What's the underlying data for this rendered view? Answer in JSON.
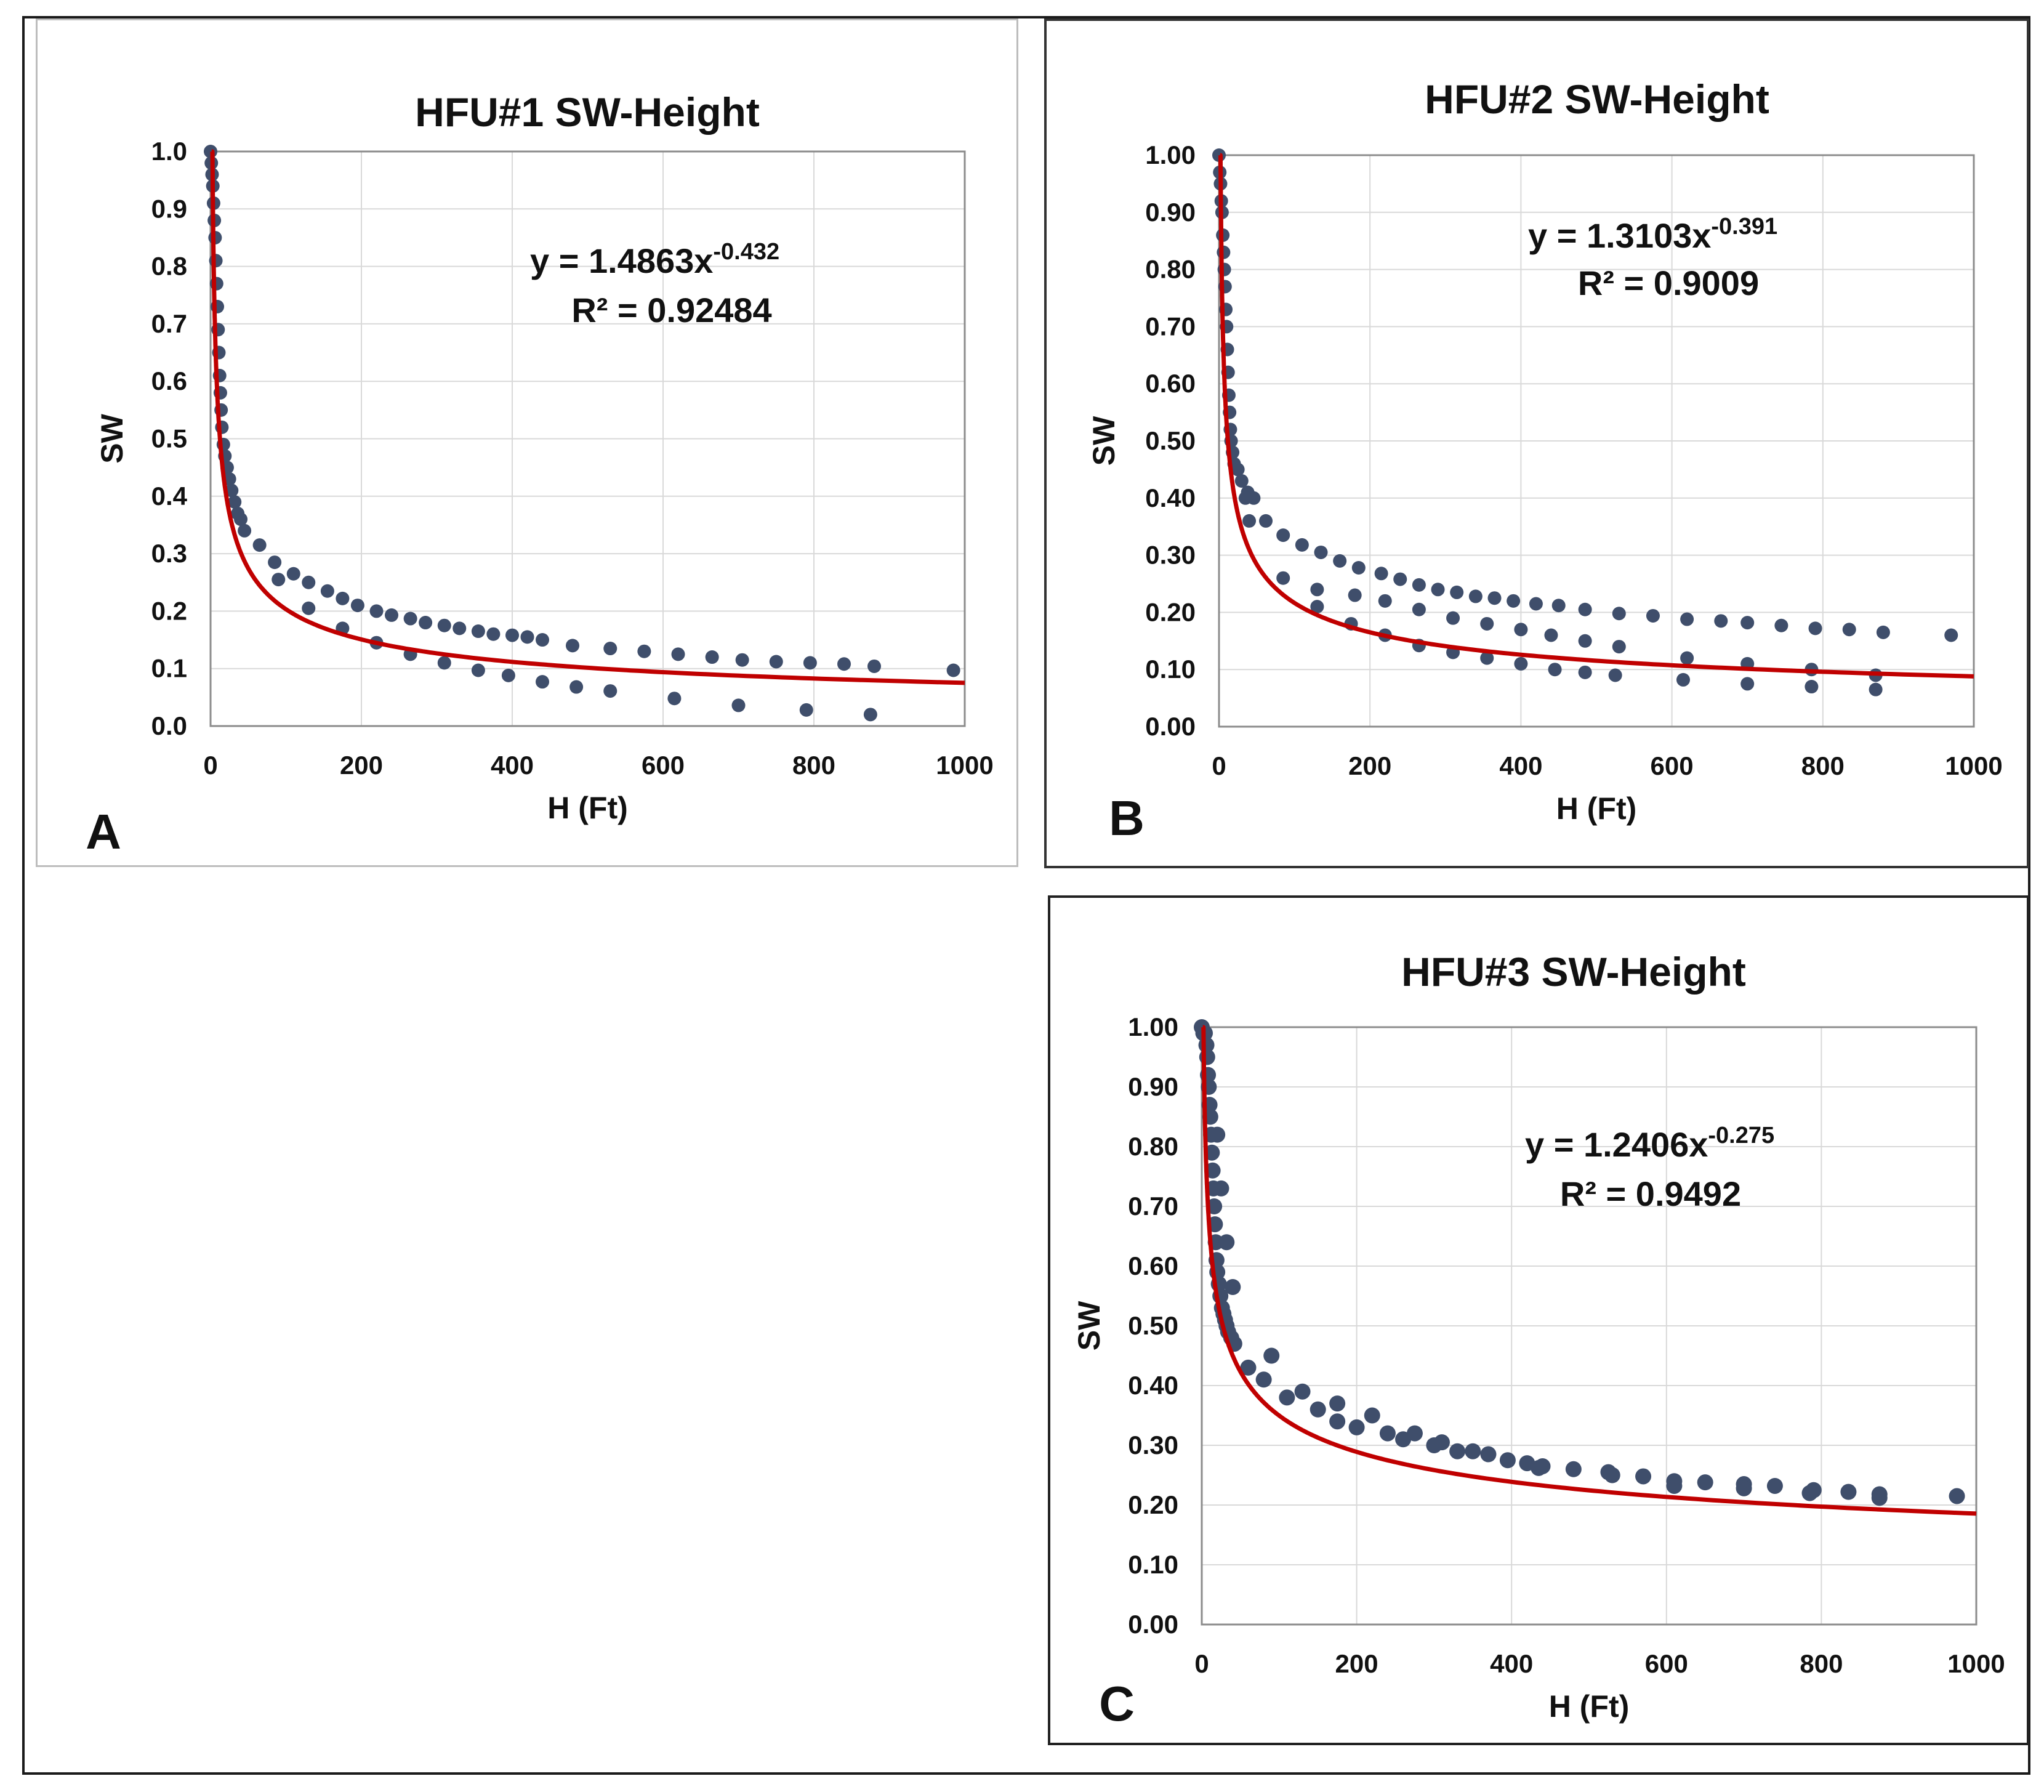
{
  "chart_data": [
    {
      "type": "scatter",
      "panel_label": "A",
      "title": "HFU#1 SW-Height",
      "xlabel": "H (Ft)",
      "ylabel": "SW",
      "xlim": [
        0,
        1000
      ],
      "ylim": [
        0,
        1.0
      ],
      "x_ticks": [
        "0",
        "200",
        "400",
        "600",
        "800",
        "1000"
      ],
      "y_ticks": [
        "0.0",
        "0.1",
        "0.2",
        "0.3",
        "0.4",
        "0.5",
        "0.6",
        "0.7",
        "0.8",
        "0.9",
        "1.0"
      ],
      "equation_prefix": "y = 1.4863x",
      "equation_exponent": "-0.432",
      "r2_text": "R² = 0.92484",
      "trendline": {
        "a": 1.4863,
        "b": -0.432,
        "x_min": 1.5
      },
      "points": [
        [
          0,
          1.0
        ],
        [
          1,
          0.98
        ],
        [
          2,
          0.96
        ],
        [
          3,
          0.94
        ],
        [
          4,
          0.91
        ],
        [
          5,
          0.88
        ],
        [
          6,
          0.85
        ],
        [
          7,
          0.81
        ],
        [
          8,
          0.77
        ],
        [
          9,
          0.73
        ],
        [
          10,
          0.69
        ],
        [
          11,
          0.65
        ],
        [
          12,
          0.61
        ],
        [
          13,
          0.58
        ],
        [
          14,
          0.55
        ],
        [
          15,
          0.52
        ],
        [
          17,
          0.49
        ],
        [
          19,
          0.47
        ],
        [
          22,
          0.45
        ],
        [
          25,
          0.43
        ],
        [
          28,
          0.41
        ],
        [
          32,
          0.39
        ],
        [
          36,
          0.37
        ],
        [
          40,
          0.36
        ],
        [
          45,
          0.34
        ],
        [
          65,
          0.315
        ],
        [
          85,
          0.285
        ],
        [
          110,
          0.265
        ],
        [
          130,
          0.25
        ],
        [
          155,
          0.235
        ],
        [
          175,
          0.222
        ],
        [
          195,
          0.21
        ],
        [
          220,
          0.2
        ],
        [
          240,
          0.193
        ],
        [
          265,
          0.187
        ],
        [
          285,
          0.18
        ],
        [
          310,
          0.175
        ],
        [
          330,
          0.17
        ],
        [
          355,
          0.165
        ],
        [
          375,
          0.16
        ],
        [
          400,
          0.158
        ],
        [
          420,
          0.155
        ],
        [
          440,
          0.15
        ],
        [
          480,
          0.14
        ],
        [
          530,
          0.135
        ],
        [
          575,
          0.13
        ],
        [
          620,
          0.125
        ],
        [
          665,
          0.12
        ],
        [
          705,
          0.115
        ],
        [
          750,
          0.112
        ],
        [
          795,
          0.11
        ],
        [
          840,
          0.108
        ],
        [
          880,
          0.104
        ],
        [
          985,
          0.097
        ],
        [
          90,
          0.255
        ],
        [
          130,
          0.205
        ],
        [
          175,
          0.17
        ],
        [
          220,
          0.145
        ],
        [
          265,
          0.125
        ],
        [
          310,
          0.11
        ],
        [
          355,
          0.097
        ],
        [
          395,
          0.088
        ],
        [
          440,
          0.077
        ],
        [
          485,
          0.068
        ],
        [
          530,
          0.061
        ],
        [
          615,
          0.048
        ],
        [
          700,
          0.036
        ],
        [
          790,
          0.028
        ],
        [
          875,
          0.02
        ]
      ]
    },
    {
      "type": "scatter",
      "panel_label": "B",
      "title": "HFU#2 SW-Height",
      "xlabel": "H (Ft)",
      "ylabel": "SW",
      "xlim": [
        0,
        1000
      ],
      "ylim": [
        0,
        1.0
      ],
      "x_ticks": [
        "0",
        "200",
        "400",
        "600",
        "800",
        "1000"
      ],
      "y_ticks": [
        "0.00",
        "0.10",
        "0.20",
        "0.30",
        "0.40",
        "0.50",
        "0.60",
        "0.70",
        "0.80",
        "0.90",
        "1.00"
      ],
      "equation_prefix": "y = 1.3103x",
      "equation_exponent": "-0.391",
      "r2_text": "R² = 0.9009",
      "trendline": {
        "a": 1.3103,
        "b": -0.391,
        "x_min": 1.5
      },
      "points": [
        [
          0,
          1.0
        ],
        [
          1,
          0.97
        ],
        [
          2,
          0.95
        ],
        [
          3,
          0.92
        ],
        [
          4,
          0.9
        ],
        [
          5,
          0.86
        ],
        [
          6,
          0.83
        ],
        [
          7,
          0.8
        ],
        [
          8,
          0.77
        ],
        [
          9,
          0.73
        ],
        [
          10,
          0.7
        ],
        [
          11,
          0.66
        ],
        [
          12,
          0.62
        ],
        [
          13,
          0.58
        ],
        [
          14,
          0.55
        ],
        [
          15,
          0.52
        ],
        [
          16,
          0.5
        ],
        [
          18,
          0.48
        ],
        [
          20,
          0.46
        ],
        [
          25,
          0.45
        ],
        [
          30,
          0.43
        ],
        [
          38,
          0.41
        ],
        [
          46,
          0.4
        ],
        [
          35,
          0.4
        ],
        [
          62,
          0.36
        ],
        [
          85,
          0.335
        ],
        [
          110,
          0.318
        ],
        [
          135,
          0.305
        ],
        [
          160,
          0.29
        ],
        [
          185,
          0.278
        ],
        [
          215,
          0.268
        ],
        [
          240,
          0.258
        ],
        [
          265,
          0.248
        ],
        [
          290,
          0.24
        ],
        [
          315,
          0.235
        ],
        [
          340,
          0.228
        ],
        [
          365,
          0.225
        ],
        [
          390,
          0.22
        ],
        [
          420,
          0.215
        ],
        [
          450,
          0.212
        ],
        [
          485,
          0.205
        ],
        [
          530,
          0.198
        ],
        [
          575,
          0.194
        ],
        [
          620,
          0.188
        ],
        [
          665,
          0.185
        ],
        [
          700,
          0.182
        ],
        [
          745,
          0.177
        ],
        [
          790,
          0.172
        ],
        [
          835,
          0.17
        ],
        [
          880,
          0.165
        ],
        [
          970,
          0.16
        ],
        [
          40,
          0.36
        ],
        [
          85,
          0.26
        ],
        [
          130,
          0.21
        ],
        [
          175,
          0.18
        ],
        [
          220,
          0.16
        ],
        [
          265,
          0.142
        ],
        [
          310,
          0.13
        ],
        [
          355,
          0.12
        ],
        [
          400,
          0.11
        ],
        [
          445,
          0.1
        ],
        [
          485,
          0.095
        ],
        [
          525,
          0.09
        ],
        [
          615,
          0.082
        ],
        [
          700,
          0.075
        ],
        [
          785,
          0.07
        ],
        [
          870,
          0.065
        ],
        [
          130,
          0.24
        ],
        [
          180,
          0.23
        ],
        [
          220,
          0.22
        ],
        [
          265,
          0.205
        ],
        [
          310,
          0.19
        ],
        [
          355,
          0.18
        ],
        [
          400,
          0.17
        ],
        [
          440,
          0.16
        ],
        [
          485,
          0.15
        ],
        [
          530,
          0.14
        ],
        [
          620,
          0.12
        ],
        [
          700,
          0.11
        ],
        [
          785,
          0.1
        ],
        [
          870,
          0.09
        ]
      ]
    },
    {
      "type": "scatter",
      "panel_label": "C",
      "title": "HFU#3 SW-Height",
      "xlabel": "H (Ft)",
      "ylabel": "SW",
      "xlim": [
        0,
        1000
      ],
      "ylim": [
        0,
        1.0
      ],
      "x_ticks": [
        "0",
        "200",
        "400",
        "600",
        "800",
        "1000"
      ],
      "y_ticks": [
        "0.00",
        "0.10",
        "0.20",
        "0.30",
        "0.40",
        "0.50",
        "0.60",
        "0.70",
        "0.80",
        "0.90",
        "1.00"
      ],
      "equation_prefix": "y = 1.2406x",
      "equation_exponent": "-0.275",
      "r2_text": "R² = 0.9492",
      "trendline": {
        "a": 1.2406,
        "b": -0.275,
        "x_min": 1.3
      },
      "points": [
        [
          0,
          1.0
        ],
        [
          2,
          0.99
        ],
        [
          4,
          0.99
        ],
        [
          6,
          0.97
        ],
        [
          7,
          0.95
        ],
        [
          8,
          0.92
        ],
        [
          9,
          0.9
        ],
        [
          10,
          0.87
        ],
        [
          11,
          0.85
        ],
        [
          12,
          0.82
        ],
        [
          13,
          0.79
        ],
        [
          14,
          0.76
        ],
        [
          15,
          0.73
        ],
        [
          16,
          0.7
        ],
        [
          17,
          0.67
        ],
        [
          18,
          0.64
        ],
        [
          19,
          0.61
        ],
        [
          20,
          0.59
        ],
        [
          22,
          0.57
        ],
        [
          24,
          0.55
        ],
        [
          26,
          0.53
        ],
        [
          28,
          0.52
        ],
        [
          30,
          0.51
        ],
        [
          32,
          0.5
        ],
        [
          34,
          0.49
        ],
        [
          38,
          0.48
        ],
        [
          42,
          0.47
        ],
        [
          20,
          0.82
        ],
        [
          25,
          0.73
        ],
        [
          32,
          0.64
        ],
        [
          40,
          0.565
        ],
        [
          60,
          0.43
        ],
        [
          80,
          0.41
        ],
        [
          90,
          0.45
        ],
        [
          110,
          0.38
        ],
        [
          130,
          0.39
        ],
        [
          150,
          0.36
        ],
        [
          175,
          0.37
        ],
        [
          175,
          0.34
        ],
        [
          200,
          0.33
        ],
        [
          220,
          0.35
        ],
        [
          240,
          0.32
        ],
        [
          260,
          0.31
        ],
        [
          275,
          0.32
        ],
        [
          300,
          0.3
        ],
        [
          310,
          0.305
        ],
        [
          330,
          0.29
        ],
        [
          350,
          0.29
        ],
        [
          370,
          0.285
        ],
        [
          395,
          0.275
        ],
        [
          420,
          0.27
        ],
        [
          440,
          0.265
        ],
        [
          480,
          0.26
        ],
        [
          530,
          0.25
        ],
        [
          570,
          0.248
        ],
        [
          610,
          0.24
        ],
        [
          650,
          0.238
        ],
        [
          700,
          0.235
        ],
        [
          740,
          0.232
        ],
        [
          790,
          0.225
        ],
        [
          835,
          0.222
        ],
        [
          875,
          0.218
        ],
        [
          975,
          0.215
        ],
        [
          435,
          0.262
        ],
        [
          525,
          0.255
        ],
        [
          610,
          0.232
        ],
        [
          700,
          0.228
        ],
        [
          785,
          0.22
        ],
        [
          875,
          0.212
        ]
      ]
    }
  ],
  "colors": {
    "marker": "#3f4e6b",
    "trendline": "#c00000",
    "grid": "#d9d9d9",
    "axis": "#8c8c8c",
    "text": "#111111"
  }
}
